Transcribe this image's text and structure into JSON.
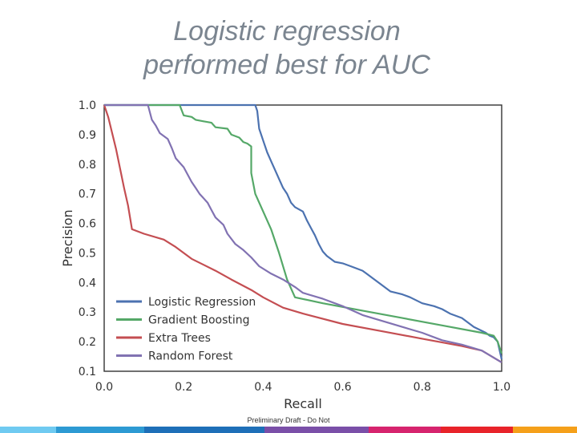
{
  "slide": {
    "title_line1": "Logistic regression",
    "title_line2": "performed best for AUC",
    "footer": "Preliminary Draft - Do Not"
  },
  "colors": {
    "title": "#7b8590",
    "strip": [
      "#6fcaf1",
      "#2d9ad3",
      "#1e6fb8",
      "#7a4fa8",
      "#d6246e",
      "#e8232a",
      "#f5a01a"
    ]
  },
  "chart_data": {
    "type": "line",
    "title": "",
    "xlabel": "Recall",
    "ylabel": "Precision",
    "xlim": [
      0.0,
      1.0
    ],
    "ylim": [
      0.1,
      1.0
    ],
    "xticks": [
      "0.0",
      "0.2",
      "0.4",
      "0.6",
      "0.8",
      "1.0"
    ],
    "yticks": [
      "0.1",
      "0.2",
      "0.3",
      "0.4",
      "0.5",
      "0.6",
      "0.7",
      "0.8",
      "0.9",
      "1.0"
    ],
    "legend_position": "lower-left",
    "series": [
      {
        "name": "Logistic Regression",
        "color": "#4c72b0",
        "points": [
          [
            0.0,
            1.0
          ],
          [
            0.38,
            1.0
          ],
          [
            0.385,
            0.98
          ],
          [
            0.39,
            0.92
          ],
          [
            0.4,
            0.88
          ],
          [
            0.41,
            0.84
          ],
          [
            0.42,
            0.81
          ],
          [
            0.43,
            0.78
          ],
          [
            0.44,
            0.75
          ],
          [
            0.45,
            0.72
          ],
          [
            0.46,
            0.7
          ],
          [
            0.47,
            0.67
          ],
          [
            0.48,
            0.655
          ],
          [
            0.5,
            0.64
          ],
          [
            0.51,
            0.61
          ],
          [
            0.52,
            0.585
          ],
          [
            0.53,
            0.56
          ],
          [
            0.54,
            0.53
          ],
          [
            0.55,
            0.505
          ],
          [
            0.56,
            0.49
          ],
          [
            0.57,
            0.48
          ],
          [
            0.58,
            0.47
          ],
          [
            0.6,
            0.465
          ],
          [
            0.62,
            0.455
          ],
          [
            0.63,
            0.45
          ],
          [
            0.65,
            0.44
          ],
          [
            0.66,
            0.43
          ],
          [
            0.68,
            0.41
          ],
          [
            0.7,
            0.39
          ],
          [
            0.72,
            0.37
          ],
          [
            0.75,
            0.36
          ],
          [
            0.77,
            0.35
          ],
          [
            0.8,
            0.33
          ],
          [
            0.83,
            0.32
          ],
          [
            0.85,
            0.31
          ],
          [
            0.87,
            0.295
          ],
          [
            0.9,
            0.28
          ],
          [
            0.93,
            0.25
          ],
          [
            0.96,
            0.23
          ],
          [
            0.97,
            0.22
          ],
          [
            0.98,
            0.215
          ],
          [
            0.99,
            0.2
          ],
          [
            1.0,
            0.14
          ]
        ]
      },
      {
        "name": "Gradient Boosting",
        "color": "#55a868",
        "points": [
          [
            0.0,
            1.0
          ],
          [
            0.19,
            1.0
          ],
          [
            0.2,
            0.965
          ],
          [
            0.22,
            0.96
          ],
          [
            0.23,
            0.95
          ],
          [
            0.25,
            0.945
          ],
          [
            0.27,
            0.94
          ],
          [
            0.28,
            0.925
          ],
          [
            0.31,
            0.92
          ],
          [
            0.32,
            0.9
          ],
          [
            0.34,
            0.89
          ],
          [
            0.35,
            0.875
          ],
          [
            0.36,
            0.87
          ],
          [
            0.37,
            0.86
          ],
          [
            0.37,
            0.77
          ],
          [
            0.38,
            0.7
          ],
          [
            0.4,
            0.64
          ],
          [
            0.42,
            0.58
          ],
          [
            0.44,
            0.5
          ],
          [
            0.46,
            0.41
          ],
          [
            0.48,
            0.35
          ],
          [
            0.55,
            0.33
          ],
          [
            0.65,
            0.305
          ],
          [
            0.75,
            0.28
          ],
          [
            0.85,
            0.255
          ],
          [
            0.95,
            0.23
          ],
          [
            0.98,
            0.22
          ],
          [
            0.99,
            0.2
          ],
          [
            1.0,
            0.16
          ]
        ]
      },
      {
        "name": "Extra Trees",
        "color": "#c44e52",
        "points": [
          [
            0.0,
            1.0
          ],
          [
            0.01,
            0.96
          ],
          [
            0.03,
            0.85
          ],
          [
            0.05,
            0.72
          ],
          [
            0.06,
            0.66
          ],
          [
            0.07,
            0.58
          ],
          [
            0.1,
            0.565
          ],
          [
            0.15,
            0.545
          ],
          [
            0.18,
            0.52
          ],
          [
            0.22,
            0.48
          ],
          [
            0.28,
            0.44
          ],
          [
            0.32,
            0.41
          ],
          [
            0.37,
            0.375
          ],
          [
            0.4,
            0.35
          ],
          [
            0.45,
            0.315
          ],
          [
            0.5,
            0.295
          ],
          [
            0.6,
            0.26
          ],
          [
            0.7,
            0.235
          ],
          [
            0.8,
            0.21
          ],
          [
            0.9,
            0.185
          ],
          [
            0.95,
            0.17
          ],
          [
            1.0,
            0.13
          ]
        ]
      },
      {
        "name": "Random Forest",
        "color": "#8172b2",
        "points": [
          [
            0.0,
            1.0
          ],
          [
            0.11,
            1.0
          ],
          [
            0.12,
            0.95
          ],
          [
            0.13,
            0.93
          ],
          [
            0.14,
            0.905
          ],
          [
            0.16,
            0.885
          ],
          [
            0.17,
            0.855
          ],
          [
            0.18,
            0.82
          ],
          [
            0.2,
            0.79
          ],
          [
            0.22,
            0.74
          ],
          [
            0.23,
            0.72
          ],
          [
            0.24,
            0.7
          ],
          [
            0.26,
            0.67
          ],
          [
            0.27,
            0.645
          ],
          [
            0.28,
            0.62
          ],
          [
            0.3,
            0.595
          ],
          [
            0.31,
            0.565
          ],
          [
            0.33,
            0.53
          ],
          [
            0.35,
            0.51
          ],
          [
            0.37,
            0.485
          ],
          [
            0.39,
            0.455
          ],
          [
            0.42,
            0.43
          ],
          [
            0.45,
            0.41
          ],
          [
            0.48,
            0.385
          ],
          [
            0.5,
            0.365
          ],
          [
            0.55,
            0.345
          ],
          [
            0.6,
            0.32
          ],
          [
            0.65,
            0.29
          ],
          [
            0.7,
            0.27
          ],
          [
            0.75,
            0.25
          ],
          [
            0.8,
            0.23
          ],
          [
            0.85,
            0.205
          ],
          [
            0.9,
            0.19
          ],
          [
            0.95,
            0.17
          ],
          [
            1.0,
            0.13
          ]
        ]
      }
    ]
  }
}
